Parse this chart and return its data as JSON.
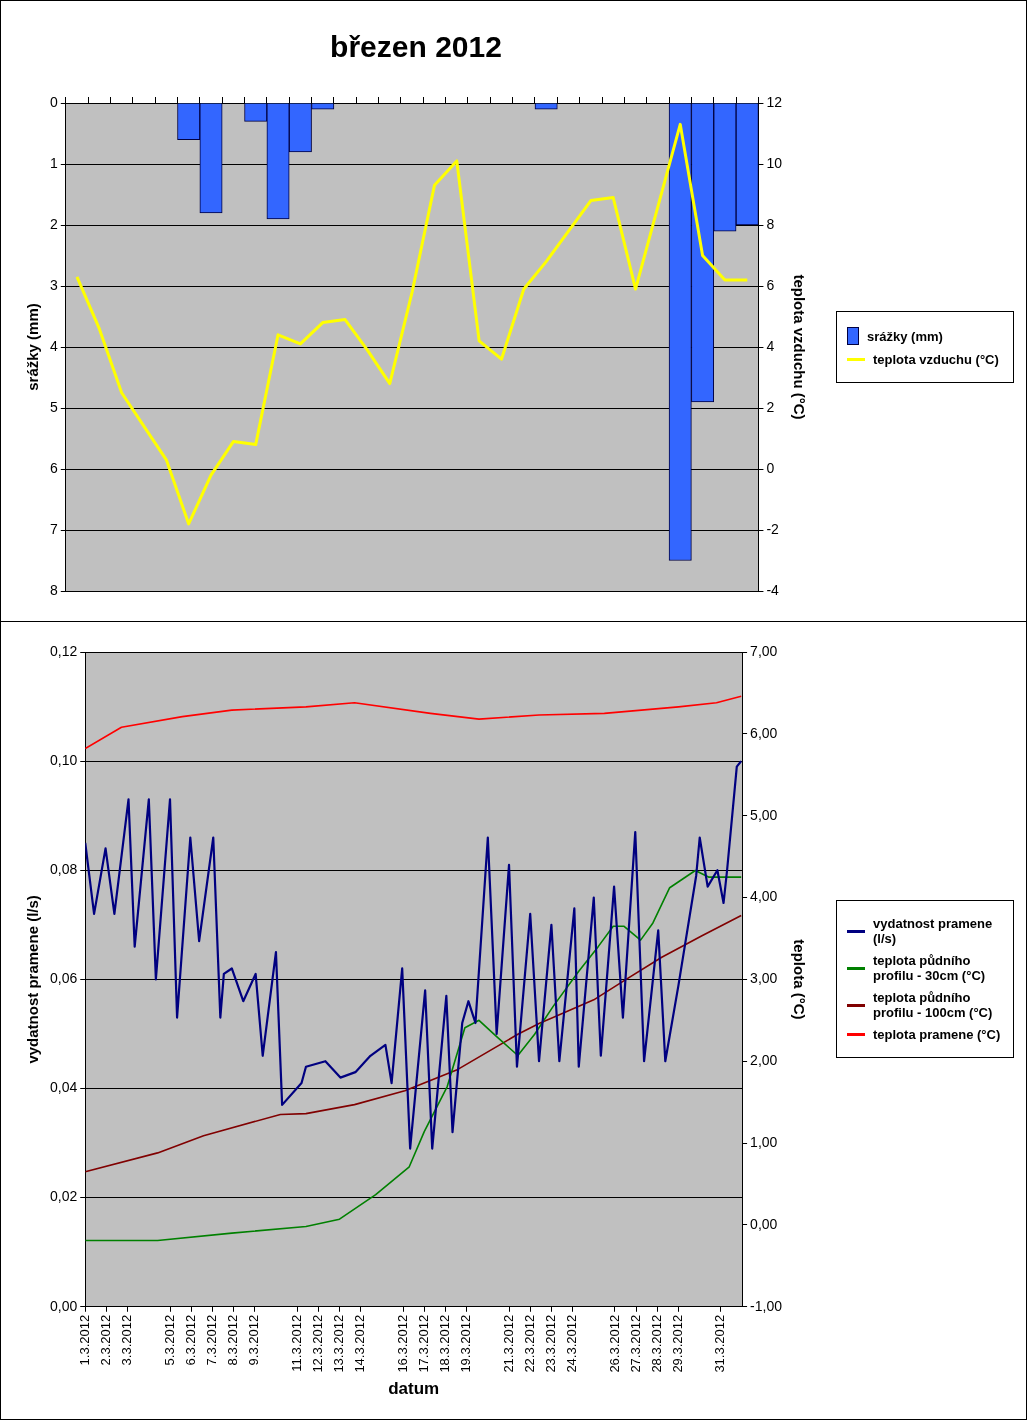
{
  "chart_data": [
    {
      "type": "bar",
      "title": "březen 2012",
      "ylabel": "srážky (mm)",
      "y2label": "teplota vzduchu (°C)",
      "categories": [
        null,
        null,
        null,
        null,
        null,
        null,
        null,
        null,
        null,
        null,
        null,
        null,
        null,
        null,
        null,
        null,
        null,
        null,
        null,
        null,
        null,
        null,
        null,
        null,
        null,
        null,
        null,
        null,
        null,
        null,
        null
      ],
      "series": [
        {
          "name": "srážky (mm)",
          "type": "bar",
          "color": "#3366ff",
          "values": [
            0,
            0,
            0,
            0,
            0,
            0.6,
            1.8,
            0,
            0.3,
            1.9,
            0.8,
            0.1,
            0,
            0,
            0,
            0,
            0,
            0,
            0,
            0,
            0,
            0.1,
            0,
            0,
            0,
            0,
            0,
            7.5,
            4.9,
            2.1,
            2.0
          ]
        },
        {
          "name": "teplota vzduchu (°C)",
          "type": "line",
          "axis": "y2",
          "color": "#ffff00",
          "values": [
            6.3,
            4.6,
            2.5,
            1.4,
            0.3,
            -1.8,
            -0.2,
            0.9,
            0.8,
            4.4,
            4.1,
            4.8,
            4.9,
            3.9,
            2.8,
            5.8,
            9.3,
            10.1,
            4.2,
            3.6,
            5.9,
            6.8,
            7.8,
            8.8,
            8.9,
            5.9,
            8.6,
            11.3,
            7.0,
            6.2,
            6.2
          ]
        }
      ],
      "ylim": [
        8,
        0
      ],
      "yticks": [
        0,
        1,
        2,
        3,
        4,
        5,
        6,
        7,
        8
      ],
      "y2lim": [
        -4,
        12
      ],
      "y2ticks": [
        -4,
        -2,
        0,
        2,
        4,
        6,
        8,
        10,
        12
      ],
      "grid": "y",
      "legend": "right",
      "tick_labels": "y"
    },
    {
      "type": "line",
      "xlabel": "datum",
      "ylabel": "vydatnost pramene (l/s)",
      "y2label": "teplota (°C)",
      "series": [
        {
          "name": "vydatnost pramene (l/s)",
          "color": "#000080",
          "x": [
            "2012-03-01T00:00",
            "2012-03-01T10:00",
            "2012-03-01T23:00",
            "2012-03-02T09:00",
            "2012-03-03T01:00",
            "2012-03-03T08:00",
            "2012-03-04T00:00",
            "2012-03-04T08:00",
            "2012-03-05T00:00",
            "2012-03-05T08:00",
            "2012-03-05T23:00",
            "2012-03-06T09:00",
            "2012-03-07T01:00",
            "2012-03-07T09:00",
            "2012-03-07T13:00",
            "2012-03-07T22:00",
            "2012-03-08T11:00",
            "2012-03-09T01:00",
            "2012-03-09T09:00",
            "2012-03-10T00:00",
            "2012-03-10T07:00",
            "2012-03-11T05:00",
            "2012-03-11T10:00",
            "2012-03-12T08:00",
            "2012-03-13T01:00",
            "2012-03-13T18:00",
            "2012-03-14T11:00",
            "2012-03-15T04:00",
            "2012-03-15T11:00",
            "2012-03-15T23:00",
            "2012-03-16T08:00",
            "2012-03-17T01:00",
            "2012-03-17T09:00",
            "2012-03-18T01:00",
            "2012-03-18T08:00",
            "2012-03-18T19:00",
            "2012-03-19T02:00",
            "2012-03-19T10:00",
            "2012-03-20T00:00",
            "2012-03-20T10:00",
            "2012-03-21T00:00",
            "2012-03-21T09:00",
            "2012-03-22T00:00",
            "2012-03-22T10:00",
            "2012-03-23T00:00",
            "2012-03-23T09:00",
            "2012-03-24T02:00",
            "2012-03-24T07:00",
            "2012-03-25T00:00",
            "2012-03-25T08:00",
            "2012-03-25T23:00",
            "2012-03-26T09:00",
            "2012-03-26T23:00",
            "2012-03-27T09:00",
            "2012-03-28T01:00",
            "2012-03-28T09:00",
            "2012-03-29T00:00",
            "2012-03-29T07:00",
            "2012-03-29T20:00",
            "2012-03-30T00:00",
            "2012-03-30T09:00",
            "2012-03-30T20:00",
            "2012-03-31T03:00",
            "2012-03-31T07:00",
            "2012-03-31T18:00",
            "2012-03-31T23:00"
          ],
          "values": [
            0.085,
            0.072,
            0.084,
            0.072,
            0.093,
            0.066,
            0.093,
            0.06,
            0.093,
            0.053,
            0.086,
            0.067,
            0.086,
            0.053,
            0.061,
            0.062,
            0.056,
            0.061,
            0.046,
            0.065,
            0.037,
            0.041,
            0.044,
            0.045,
            0.042,
            0.043,
            0.046,
            0.048,
            0.041,
            0.062,
            0.029,
            0.058,
            0.029,
            0.057,
            0.032,
            0.052,
            0.056,
            0.052,
            0.086,
            0.05,
            0.081,
            0.044,
            0.072,
            0.045,
            0.07,
            0.045,
            0.073,
            0.044,
            0.075,
            0.046,
            0.077,
            0.053,
            0.087,
            0.045,
            0.069,
            0.045,
            0.059,
            0.066,
            0.079,
            0.086,
            0.077,
            0.08,
            0.074,
            0.08,
            0.099,
            0.1
          ]
        },
        {
          "name": "teplota půdního profilu - 30cm (°C)",
          "axis": "y2",
          "color": "#008000",
          "x": [
            "2012-03-01T00:00",
            "2012-03-04T10:00",
            "2012-03-07T22:00",
            "2012-03-11T10:00",
            "2012-03-13T00:00",
            "2012-03-14T17:00",
            "2012-03-16T07:00",
            "2012-03-17T00:00",
            "2012-03-18T02:00",
            "2012-03-18T22:00",
            "2012-03-19T14:00",
            "2012-03-20T10:00",
            "2012-03-21T10:00",
            "2012-03-22T05:00",
            "2012-03-23T02:00",
            "2012-03-24T07:00",
            "2012-03-25T05:00",
            "2012-03-25T22:00",
            "2012-03-26T10:00",
            "2012-03-27T05:00",
            "2012-03-27T19:00",
            "2012-03-28T14:00",
            "2012-03-29T19:00",
            "2012-03-30T10:00",
            "2012-03-31T23:00"
          ],
          "values": [
            -0.19,
            -0.19,
            -0.1,
            -0.02,
            0.07,
            0.37,
            0.71,
            1.14,
            1.69,
            2.41,
            2.5,
            2.3,
            2.07,
            2.33,
            2.67,
            3.1,
            3.4,
            3.65,
            3.65,
            3.48,
            3.69,
            4.12,
            4.33,
            4.25,
            4.25
          ]
        },
        {
          "name": "teplota půdního profilu - 100cm (°C)",
          "axis": "y2",
          "color": "#800000",
          "x": [
            "2012-03-01T00:00",
            "2012-03-04T10:00",
            "2012-03-06T14:00",
            "2012-03-10T05:00",
            "2012-03-11T10:00",
            "2012-03-13T17:00",
            "2012-03-16T02:00",
            "2012-03-18T14:00",
            "2012-03-21T10:00",
            "2012-03-22T10:00",
            "2012-03-25T00:00",
            "2012-03-26T14:00",
            "2012-03-28T05:00",
            "2012-03-30T02:00",
            "2012-03-31T23:00"
          ],
          "values": [
            0.65,
            0.88,
            1.09,
            1.35,
            1.36,
            1.47,
            1.64,
            1.9,
            2.33,
            2.46,
            2.75,
            3.01,
            3.27,
            3.53,
            3.78
          ]
        },
        {
          "name": "teplota pramene (°C)",
          "axis": "y2",
          "color": "#ff0000",
          "x": [
            "2012-03-01T00:00",
            "2012-03-02T17:00",
            "2012-03-05T14:00",
            "2012-03-07T22:00",
            "2012-03-11T10:00",
            "2012-03-13T17:00",
            "2012-03-17T07:00",
            "2012-03-19T14:00",
            "2012-03-22T10:00",
            "2012-03-25T12:00",
            "2012-03-29T00:00",
            "2012-03-30T19:00",
            "2012-03-31T23:00"
          ],
          "values": [
            5.82,
            6.08,
            6.21,
            6.29,
            6.33,
            6.38,
            6.25,
            6.18,
            6.23,
            6.25,
            6.33,
            6.38,
            6.46
          ]
        }
      ],
      "xlim": [
        "2012-03-01",
        "2012-04-01"
      ],
      "xticks": [
        {
          "value": "2012-03-01",
          "label": "1.3.2012"
        },
        {
          "value": "2012-03-02",
          "label": "2.3.2012"
        },
        {
          "value": "2012-03-03",
          "label": "3.3.2012"
        },
        {
          "value": "2012-03-05",
          "label": "5.3.2012"
        },
        {
          "value": "2012-03-06",
          "label": "6.3.2012"
        },
        {
          "value": "2012-03-07",
          "label": "7.3.2012"
        },
        {
          "value": "2012-03-08",
          "label": "8.3.2012"
        },
        {
          "value": "2012-03-09",
          "label": "9.3.2012"
        },
        {
          "value": "2012-03-11",
          "label": "11.3.2012"
        },
        {
          "value": "2012-03-12",
          "label": "12.3.2012"
        },
        {
          "value": "2012-03-13",
          "label": "13.3.2012"
        },
        {
          "value": "2012-03-14",
          "label": "14.3.2012"
        },
        {
          "value": "2012-03-16",
          "label": "16.3.2012"
        },
        {
          "value": "2012-03-17",
          "label": "17.3.2012"
        },
        {
          "value": "2012-03-18",
          "label": "18.3.2012"
        },
        {
          "value": "2012-03-19",
          "label": "19.3.2012"
        },
        {
          "value": "2012-03-21",
          "label": "21.3.2012"
        },
        {
          "value": "2012-03-22",
          "label": "22.3.2012"
        },
        {
          "value": "2012-03-23",
          "label": "23.3.2012"
        },
        {
          "value": "2012-03-24",
          "label": "24.3.2012"
        },
        {
          "value": "2012-03-26",
          "label": "26.3.2012"
        },
        {
          "value": "2012-03-27",
          "label": "27.3.2012"
        },
        {
          "value": "2012-03-28",
          "label": "28.3.2012"
        },
        {
          "value": "2012-03-29",
          "label": "29.3.2012"
        },
        {
          "value": "2012-03-31",
          "label": "31.3.2012"
        }
      ],
      "ylim": [
        0,
        0.12
      ],
      "yticks": [
        {
          "value": 0,
          "label": "0,00"
        },
        {
          "value": 0.02,
          "label": "0,02"
        },
        {
          "value": 0.04,
          "label": "0,04"
        },
        {
          "value": 0.06,
          "label": "0,06"
        },
        {
          "value": 0.08,
          "label": "0,08"
        },
        {
          "value": 0.1,
          "label": "0,10"
        },
        {
          "value": 0.12,
          "label": "0,12"
        }
      ],
      "y2lim": [
        -1,
        7
      ],
      "y2ticks": [
        {
          "value": -1,
          "label": "-1,00"
        },
        {
          "value": 0,
          "label": "0,00"
        },
        {
          "value": 1,
          "label": "1,00"
        },
        {
          "value": 2,
          "label": "2,00"
        },
        {
          "value": 3,
          "label": "3,00"
        },
        {
          "value": 4,
          "label": "4,00"
        },
        {
          "value": 5,
          "label": "5,00"
        },
        {
          "value": 6,
          "label": "6,00"
        },
        {
          "value": 7,
          "label": "7,00"
        }
      ],
      "grid": "y",
      "legend": "right"
    }
  ]
}
